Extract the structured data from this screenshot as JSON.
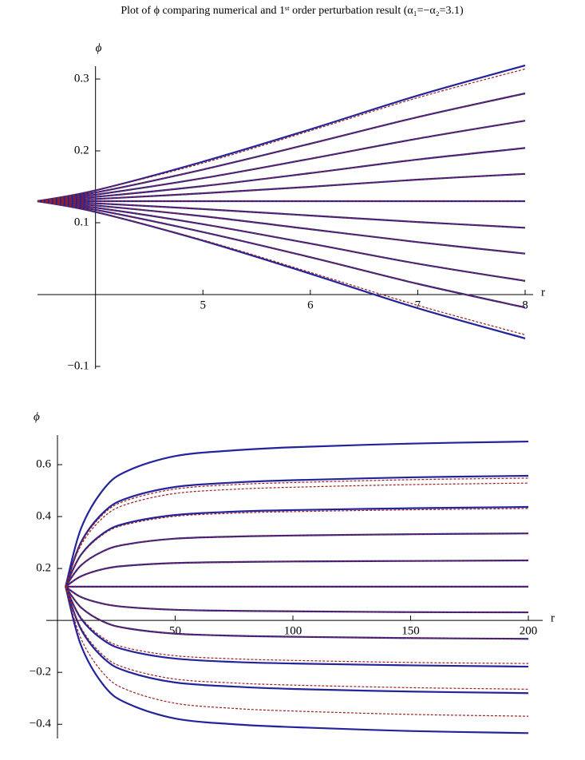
{
  "title": "Plot of ϕ comparing numerical and 1ˢᵗ order perturbation result (α₁=−α₂=3.1)",
  "chart_data": [
    {
      "type": "line",
      "y_label": "ϕ",
      "x_label": "r",
      "xlim": [
        3.46,
        8
      ],
      "ylim": [
        -0.1,
        0.32
      ],
      "axes_origin": [
        4,
        0
      ],
      "xticks": [
        5,
        6,
        7,
        8
      ],
      "yticks": [
        {
          "value": -0.1,
          "label": "−0.1"
        },
        0.1,
        0.2,
        0.3
      ],
      "x": [
        3.46,
        4,
        5,
        6,
        7,
        8
      ],
      "series": [
        {
          "color": "#23239b",
          "dashed": false,
          "values": [
            0.13,
            0.145,
            0.185,
            0.23,
            0.277,
            0.319
          ]
        },
        {
          "color": "#23239b",
          "dashed": false,
          "values": [
            0.13,
            0.142,
            0.174,
            0.21,
            0.247,
            0.28
          ]
        },
        {
          "color": "#23239b",
          "dashed": false,
          "values": [
            0.13,
            0.139,
            0.162,
            0.189,
            0.217,
            0.242
          ]
        },
        {
          "color": "#23239b",
          "dashed": false,
          "values": [
            0.13,
            0.136,
            0.151,
            0.169,
            0.188,
            0.204
          ]
        },
        {
          "color": "#23239b",
          "dashed": false,
          "values": [
            0.13,
            0.133,
            0.141,
            0.15,
            0.16,
            0.168
          ]
        },
        {
          "color": "#23239b",
          "dashed": false,
          "values": [
            0.13,
            0.13,
            0.13,
            0.13,
            0.13,
            0.13
          ]
        },
        {
          "color": "#23239b",
          "dashed": false,
          "values": [
            0.13,
            0.127,
            0.119,
            0.11,
            0.101,
            0.093
          ]
        },
        {
          "color": "#23239b",
          "dashed": false,
          "values": [
            0.13,
            0.124,
            0.109,
            0.091,
            0.073,
            0.057
          ]
        },
        {
          "color": "#23239b",
          "dashed": false,
          "values": [
            0.13,
            0.121,
            0.098,
            0.071,
            0.043,
            0.019
          ]
        },
        {
          "color": "#23239b",
          "dashed": false,
          "values": [
            0.13,
            0.118,
            0.087,
            0.052,
            0.015,
            -0.018
          ]
        },
        {
          "color": "#23239b",
          "dashed": false,
          "values": [
            0.13,
            0.115,
            0.075,
            0.029,
            -0.019,
            -0.061
          ]
        },
        {
          "color": "#9b2020",
          "dashed": true,
          "values": [
            0.13,
            0.145,
            0.183,
            0.228,
            0.274,
            0.314
          ]
        },
        {
          "color": "#9b2020",
          "dashed": true,
          "values": [
            0.13,
            0.142,
            0.174,
            0.21,
            0.247,
            0.28
          ]
        },
        {
          "color": "#9b2020",
          "dashed": true,
          "values": [
            0.13,
            0.139,
            0.162,
            0.189,
            0.217,
            0.242
          ]
        },
        {
          "color": "#9b2020",
          "dashed": true,
          "values": [
            0.13,
            0.136,
            0.151,
            0.169,
            0.188,
            0.204
          ]
        },
        {
          "color": "#9b2020",
          "dashed": true,
          "values": [
            0.13,
            0.133,
            0.141,
            0.15,
            0.16,
            0.168
          ]
        },
        {
          "color": "#9b2020",
          "dashed": true,
          "values": [
            0.13,
            0.13,
            0.13,
            0.13,
            0.13,
            0.13
          ]
        },
        {
          "color": "#9b2020",
          "dashed": true,
          "values": [
            0.13,
            0.127,
            0.119,
            0.11,
            0.101,
            0.093
          ]
        },
        {
          "color": "#9b2020",
          "dashed": true,
          "values": [
            0.13,
            0.124,
            0.109,
            0.091,
            0.073,
            0.057
          ]
        },
        {
          "color": "#9b2020",
          "dashed": true,
          "values": [
            0.13,
            0.121,
            0.098,
            0.071,
            0.043,
            0.019
          ]
        },
        {
          "color": "#9b2020",
          "dashed": true,
          "values": [
            0.13,
            0.118,
            0.087,
            0.052,
            0.015,
            -0.018
          ]
        },
        {
          "color": "#9b2020",
          "dashed": true,
          "values": [
            0.13,
            0.115,
            0.076,
            0.031,
            -0.015,
            -0.056
          ]
        }
      ]
    },
    {
      "type": "line",
      "y_label": "ϕ",
      "x_label": "r",
      "xlim": [
        0,
        200
      ],
      "ylim": [
        -0.43,
        0.7
      ],
      "axes_origin": [
        0,
        0
      ],
      "xticks": [
        50,
        100,
        150,
        200
      ],
      "yticks": [
        {
          "value": -0.4,
          "label": "−0.4"
        },
        {
          "value": -0.2,
          "label": "−0.2"
        },
        0.2,
        0.4,
        0.6
      ],
      "x": [
        3.46,
        10,
        20,
        30,
        50,
        75,
        100,
        150,
        200
      ],
      "series": [
        {
          "color": "#23239b",
          "dashed": false,
          "values": [
            0.13,
            0.354,
            0.51,
            0.577,
            0.633,
            0.655,
            0.667,
            0.681,
            0.689
          ]
        },
        {
          "color": "#23239b",
          "dashed": false,
          "values": [
            0.13,
            0.301,
            0.42,
            0.472,
            0.514,
            0.531,
            0.54,
            0.551,
            0.557
          ]
        },
        {
          "color": "#23239b",
          "dashed": false,
          "values": [
            0.13,
            0.253,
            0.339,
            0.376,
            0.406,
            0.419,
            0.425,
            0.432,
            0.437
          ]
        },
        {
          "color": "#23239b",
          "dashed": false,
          "values": [
            0.13,
            0.212,
            0.269,
            0.294,
            0.315,
            0.323,
            0.327,
            0.332,
            0.335
          ]
        },
        {
          "color": "#23239b",
          "dashed": false,
          "values": [
            0.13,
            0.17,
            0.199,
            0.211,
            0.221,
            0.225,
            0.227,
            0.229,
            0.231
          ]
        },
        {
          "color": "#23239b",
          "dashed": false,
          "values": [
            0.13,
            0.13,
            0.13,
            0.13,
            0.13,
            0.13,
            0.13,
            0.13,
            0.13
          ]
        },
        {
          "color": "#23239b",
          "dashed": false,
          "values": [
            0.13,
            0.09,
            0.063,
            0.051,
            0.041,
            0.037,
            0.035,
            0.032,
            0.031
          ]
        },
        {
          "color": "#23239b",
          "dashed": false,
          "values": [
            0.13,
            0.05,
            -0.007,
            -0.031,
            -0.051,
            -0.059,
            -0.063,
            -0.068,
            -0.071
          ]
        },
        {
          "color": "#23239b",
          "dashed": false,
          "values": [
            0.13,
            0.007,
            -0.079,
            -0.116,
            -0.147,
            -0.16,
            -0.166,
            -0.173,
            -0.178
          ]
        },
        {
          "color": "#23239b",
          "dashed": false,
          "values": [
            0.13,
            -0.034,
            -0.149,
            -0.198,
            -0.239,
            -0.255,
            -0.264,
            -0.274,
            -0.28
          ]
        },
        {
          "color": "#23239b",
          "dashed": false,
          "values": [
            0.13,
            -0.096,
            -0.254,
            -0.321,
            -0.378,
            -0.4,
            -0.411,
            -0.426,
            -0.434
          ]
        },
        {
          "color": "#9b2020",
          "dashed": true,
          "values": [
            0.13,
            0.297,
            0.414,
            0.464,
            0.506,
            0.523,
            0.531,
            0.542,
            0.548
          ]
        },
        {
          "color": "#9b2020",
          "dashed": true,
          "values": [
            0.13,
            0.29,
            0.401,
            0.449,
            0.489,
            0.505,
            0.513,
            0.523,
            0.529
          ]
        },
        {
          "color": "#9b2020",
          "dashed": true,
          "values": [
            0.13,
            0.25,
            0.335,
            0.371,
            0.401,
            0.413,
            0.419,
            0.426,
            0.431
          ]
        },
        {
          "color": "#9b2020",
          "dashed": true,
          "values": [
            0.13,
            0.212,
            0.269,
            0.294,
            0.315,
            0.323,
            0.327,
            0.332,
            0.335
          ]
        },
        {
          "color": "#9b2020",
          "dashed": true,
          "values": [
            0.13,
            0.17,
            0.199,
            0.211,
            0.221,
            0.225,
            0.227,
            0.229,
            0.231
          ]
        },
        {
          "color": "#9b2020",
          "dashed": true,
          "values": [
            0.13,
            0.13,
            0.13,
            0.13,
            0.13,
            0.13,
            0.13,
            0.13,
            0.13
          ]
        },
        {
          "color": "#9b2020",
          "dashed": true,
          "values": [
            0.13,
            0.09,
            0.063,
            0.051,
            0.041,
            0.037,
            0.035,
            0.032,
            0.031
          ]
        },
        {
          "color": "#9b2020",
          "dashed": true,
          "values": [
            0.13,
            0.05,
            -0.007,
            -0.031,
            -0.051,
            -0.059,
            -0.063,
            -0.068,
            -0.071
          ]
        },
        {
          "color": "#9b2020",
          "dashed": true,
          "values": [
            0.13,
            0.012,
            -0.071,
            -0.107,
            -0.136,
            -0.148,
            -0.154,
            -0.162,
            -0.166
          ]
        },
        {
          "color": "#9b2020",
          "dashed": true,
          "values": [
            0.13,
            -0.028,
            -0.139,
            -0.186,
            -0.226,
            -0.241,
            -0.249,
            -0.259,
            -0.265
          ]
        },
        {
          "color": "#9b2020",
          "dashed": true,
          "values": [
            0.13,
            -0.07,
            -0.209,
            -0.269,
            -0.319,
            -0.339,
            -0.349,
            -0.362,
            -0.369
          ]
        }
      ]
    }
  ]
}
